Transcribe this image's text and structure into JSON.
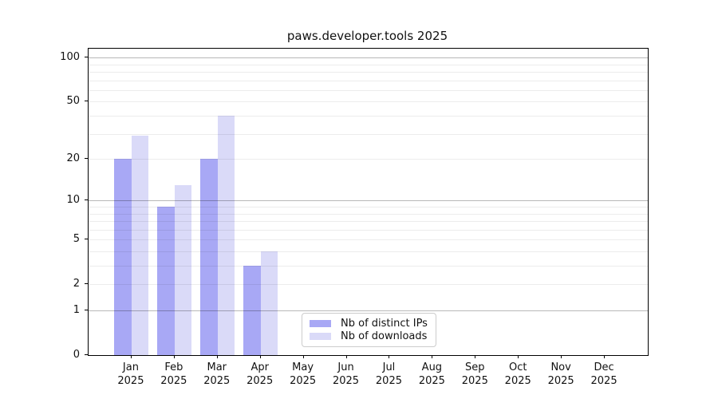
{
  "title": "paws.developer.tools 2025",
  "chart_data": {
    "type": "bar",
    "title": "paws.developer.tools 2025",
    "categories": [
      "Jan 2025",
      "Feb 2025",
      "Mar 2025",
      "Apr 2025",
      "May 2025",
      "Jun 2025",
      "Jul 2025",
      "Aug 2025",
      "Sep 2025",
      "Oct 2025",
      "Nov 2025",
      "Dec 2025"
    ],
    "series": [
      {
        "name": "Nb of distinct IPs",
        "color": "#a8a8f5",
        "values": [
          20,
          9,
          20,
          3,
          0,
          0,
          0,
          0,
          0,
          0,
          0,
          0
        ]
      },
      {
        "name": "Nb of downloads",
        "color": "#dadaf8",
        "values": [
          29,
          13,
          40,
          4,
          0,
          0,
          0,
          0,
          0,
          0,
          0,
          0
        ]
      }
    ],
    "xlabel": "",
    "ylabel": "",
    "y_scale": "log1p",
    "y_ticks": [
      0,
      1,
      2,
      5,
      10,
      20,
      50,
      100
    ],
    "ylim": [
      0,
      115
    ],
    "xlim": [
      -1,
      12
    ],
    "grid": {
      "on": true,
      "major": [
        1,
        10,
        100
      ],
      "minor": [
        2,
        3,
        4,
        5,
        6,
        7,
        8,
        9,
        20,
        30,
        40,
        50,
        60,
        70,
        80,
        90
      ]
    },
    "legend_position": "inside-bottom-center"
  },
  "legend": {
    "items": [
      "Nb of distinct IPs",
      "Nb of downloads"
    ]
  }
}
